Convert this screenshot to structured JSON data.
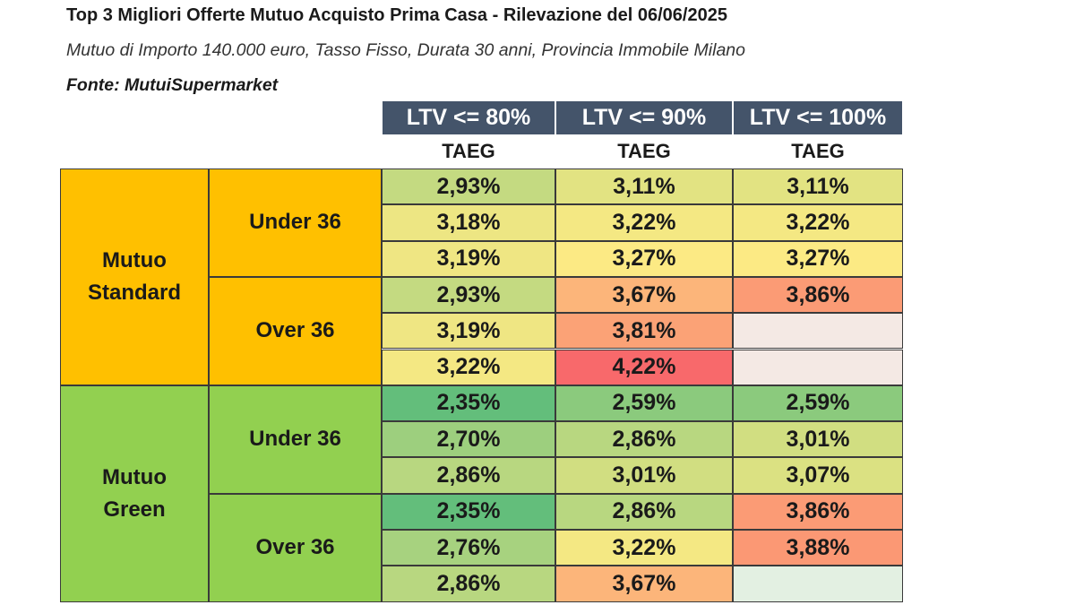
{
  "header": {
    "title": "Top 3 Migliori Offerte Mutuo Acquisto Prima Casa - Rilevazione del 06/06/2025",
    "subtitle": "Mutuo di Importo 140.000 euro, Tasso Fisso, Durata 30 anni, Provincia Immobile Milano",
    "source": "Fonte: MutuiSupermarket"
  },
  "chart_data": {
    "type": "table",
    "columns": [
      {
        "ltv": "LTV <= 80%",
        "metric": "TAEG"
      },
      {
        "ltv": "LTV <= 90%",
        "metric": "TAEG"
      },
      {
        "ltv": "LTV <= 100%",
        "metric": "TAEG"
      }
    ],
    "groups": [
      {
        "name": "Mutuo\nStandard",
        "color": "#ffc000",
        "subgroups": [
          {
            "name": "Under 36",
            "rows": [
              [
                2.93,
                3.11,
                3.11
              ],
              [
                3.18,
                3.22,
                3.22
              ],
              [
                3.19,
                3.27,
                3.27
              ]
            ]
          },
          {
            "name": "Over 36",
            "rows": [
              [
                2.93,
                3.67,
                3.86
              ],
              [
                3.19,
                3.81,
                null
              ],
              [
                3.22,
                4.22,
                null
              ]
            ]
          }
        ]
      },
      {
        "name": "Mutuo\nGreen",
        "color": "#92d050",
        "subgroups": [
          {
            "name": "Under 36",
            "rows": [
              [
                2.35,
                2.59,
                2.59
              ],
              [
                2.7,
                2.86,
                3.01
              ],
              [
                2.86,
                3.01,
                3.07
              ]
            ]
          },
          {
            "name": "Over 36",
            "rows": [
              [
                2.35,
                2.86,
                3.86
              ],
              [
                2.76,
                3.22,
                3.88
              ],
              [
                2.86,
                3.67,
                null
              ]
            ]
          }
        ]
      }
    ],
    "color_scale": {
      "low": "#63be7b",
      "mid": "#ffeb84",
      "high": "#f8696b",
      "min": 2.35,
      "max": 4.22
    },
    "empty_cell_colors": [
      "#f4e9e4",
      "#e3f0e2"
    ]
  }
}
